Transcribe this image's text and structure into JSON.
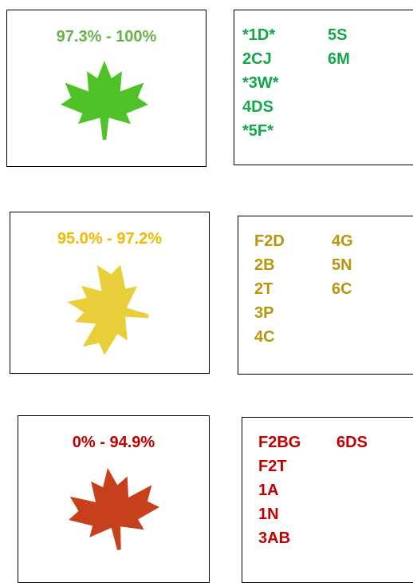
{
  "rows": [
    {
      "range": "97.3% - 100%",
      "color": "#6ab04c",
      "code_color": "#12a84a",
      "leaf_color": "#4fc22a",
      "codes_col1": [
        "*1D*",
        "2CJ",
        "*3W*",
        "4DS",
        "*5F*"
      ],
      "codes_col2": [
        "5S",
        "6M"
      ]
    },
    {
      "range": "95.0% - 97.2%",
      "color": "#f5b800",
      "code_color": "#b8960c",
      "leaf_color": "#e8cf3a",
      "codes_col1": [
        "F2D",
        "2B",
        "2T",
        "3P",
        "4C"
      ],
      "codes_col2": [
        "4G",
        "5N",
        "6C"
      ]
    },
    {
      "range": "0% - 94.9%",
      "color": "#c00000",
      "code_color": "#c00000",
      "leaf_color": "#c7401c",
      "codes_col1": [
        "F2BG",
        "F2T",
        "1A",
        "1N",
        "3AB"
      ],
      "codes_col2": [
        "6DS"
      ]
    }
  ]
}
